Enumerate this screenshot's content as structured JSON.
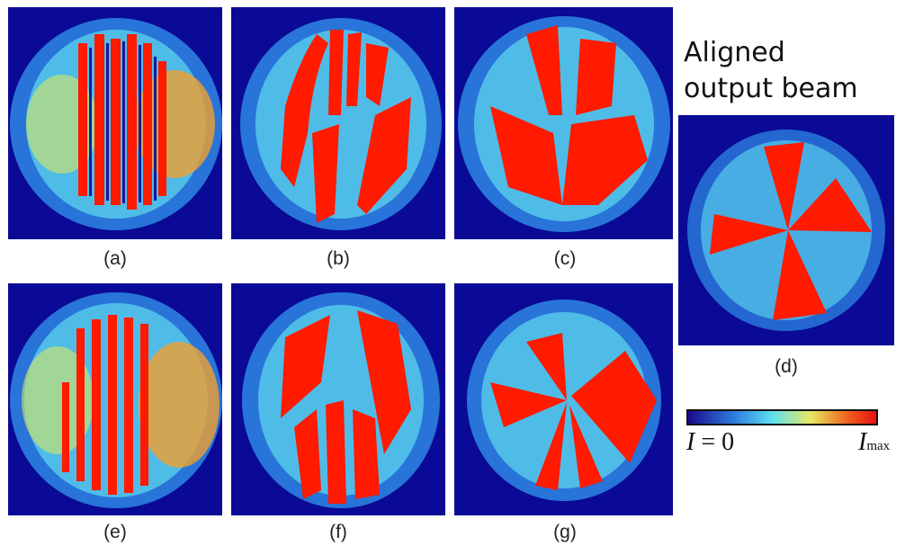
{
  "panels": [
    {
      "id": "a",
      "caption": "(a)"
    },
    {
      "id": "b",
      "caption": "(b)"
    },
    {
      "id": "c",
      "caption": "(c)"
    },
    {
      "id": "d",
      "caption": "(d)"
    },
    {
      "id": "e",
      "caption": "(e)"
    },
    {
      "id": "f",
      "caption": "(f)"
    },
    {
      "id": "g",
      "caption": "(g)"
    }
  ],
  "title_line1": "Aligned",
  "title_line2": "output beam",
  "colorbar": {
    "label_min_var": "I",
    "label_min_rest": " = 0",
    "label_max_var": "I",
    "label_max_sub": "max",
    "colors": [
      "#1a0a8c",
      "#2f7fe0",
      "#5fe0f0",
      "#e8e860",
      "#f06020",
      "#e81010"
    ]
  },
  "colors": {
    "background": "#0a0a96",
    "cool": "#2f8fe8",
    "cyan": "#5fdcf0",
    "yellow": "#e8e850",
    "hot": "#ff1a00"
  }
}
